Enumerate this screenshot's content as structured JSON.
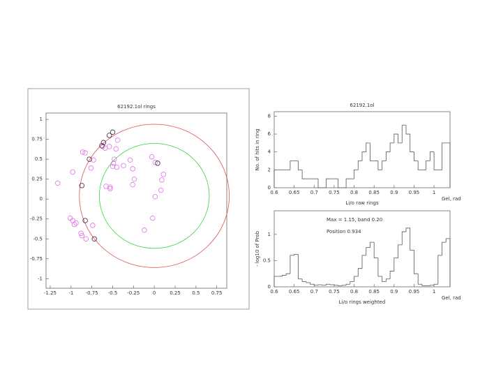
{
  "chart_data": [
    {
      "type": "scatter",
      "title": "62192.1ol rings",
      "xlim": [
        -1.3,
        0.87
      ],
      "ylim": [
        -1.12,
        1.08
      ],
      "xticks": [
        -1.25,
        -1,
        -0.75,
        -0.5,
        -0.25,
        0,
        0.25,
        0.5,
        0.75
      ],
      "yticks": [
        -1,
        -0.75,
        -0.5,
        -0.25,
        0,
        0.25,
        0.5,
        0.75,
        1
      ],
      "rings": [
        {
          "cx": 0,
          "cy": 0.04,
          "r": 0.9,
          "color": "#e05050"
        },
        {
          "cx": 0,
          "cy": 0.04,
          "r": 0.66,
          "color": "#40d040"
        }
      ],
      "series": [
        {
          "color": "#e070e8",
          "x": [
            -1.16,
            -0.98,
            -0.86,
            -0.83,
            -0.73,
            -0.76,
            -0.62,
            -0.59,
            -0.54,
            -0.44,
            -0.46,
            -0.48,
            -0.49,
            -0.5,
            -0.45,
            -0.37,
            -0.29,
            -0.26,
            -0.24,
            -0.26,
            -0.58,
            -0.53,
            -0.53,
            -0.03,
            0.01,
            0.11,
            0.09,
            0.08,
            0.01,
            -0.02,
            -0.12,
            -1.01,
            -0.98,
            -0.96,
            -0.94,
            -0.88,
            -0.87,
            -0.82,
            -0.74
          ],
          "y": [
            0.2,
            0.34,
            0.59,
            0.58,
            0.49,
            0.39,
            0.66,
            0.64,
            0.66,
            0.74,
            0.63,
            0.5,
            0.45,
            0.41,
            0.4,
            0.42,
            0.49,
            0.38,
            0.25,
            0.18,
            0.16,
            0.15,
            0.13,
            0.53,
            0.46,
            0.31,
            0.24,
            0.11,
            0.03,
            -0.24,
            -0.39,
            -0.24,
            -0.27,
            -0.32,
            -0.3,
            -0.43,
            -0.46,
            -0.5,
            -0.33
          ]
        },
        {
          "color": "#402040",
          "x": [
            -0.54,
            -0.5,
            -0.61,
            -0.63,
            -0.78,
            -0.87,
            -0.83,
            -0.72,
            0.04
          ],
          "y": [
            0.8,
            0.84,
            0.71,
            0.67,
            0.5,
            0.17,
            -0.27,
            -0.5,
            0.45
          ]
        }
      ]
    },
    {
      "type": "histogram",
      "title": "62192.1ol",
      "xlabel": "Li/o raw rings",
      "ylabel": "No. of hits in ring",
      "xunit": "Gel, rad",
      "xlim": [
        0.6,
        1.04
      ],
      "ylim": [
        0,
        8.5
      ],
      "xticks": [
        0.6,
        0.65,
        0.7,
        0.75,
        0.8,
        0.85,
        0.9,
        0.95,
        1
      ],
      "yticks": [
        0,
        2,
        4,
        6,
        8
      ],
      "color": "#555555",
      "bins": [
        0.6,
        0.61,
        0.62,
        0.63,
        0.64,
        0.65,
        0.66,
        0.67,
        0.68,
        0.69,
        0.7,
        0.71,
        0.72,
        0.73,
        0.74,
        0.75,
        0.76,
        0.77,
        0.78,
        0.79,
        0.8,
        0.81,
        0.82,
        0.83,
        0.84,
        0.85,
        0.86,
        0.87,
        0.88,
        0.89,
        0.9,
        0.91,
        0.92,
        0.93,
        0.94,
        0.95,
        0.96,
        0.97,
        0.98,
        0.99,
        1.0,
        1.01,
        1.02,
        1.03,
        1.04
      ],
      "values": [
        2,
        2,
        2,
        2,
        3,
        3,
        2,
        1,
        1,
        1,
        1,
        0,
        0,
        1,
        1,
        1,
        0,
        0,
        1,
        1,
        2,
        3,
        4,
        5,
        3,
        3,
        2,
        3,
        4,
        5,
        6,
        5,
        7,
        6,
        4,
        3,
        2,
        2,
        3,
        4,
        2,
        2,
        5,
        5
      ]
    },
    {
      "type": "histogram",
      "xlabel": "Li/o rings weighted",
      "ylabel": "- log10 of Prob",
      "xunit": "Gel, rad",
      "annotations": [
        "Max = 1.15, band 0.20",
        "Position 0.934"
      ],
      "xlim": [
        0.6,
        1.04
      ],
      "ylim": [
        0,
        1.45
      ],
      "xticks": [
        0.6,
        0.65,
        0.7,
        0.75,
        0.8,
        0.85,
        0.9,
        0.95,
        1
      ],
      "yticks": [
        0,
        0.5,
        1
      ],
      "color": "#555555",
      "bins": [
        0.6,
        0.61,
        0.62,
        0.63,
        0.64,
        0.65,
        0.66,
        0.67,
        0.68,
        0.69,
        0.7,
        0.71,
        0.72,
        0.73,
        0.74,
        0.75,
        0.76,
        0.77,
        0.78,
        0.79,
        0.8,
        0.81,
        0.82,
        0.83,
        0.84,
        0.85,
        0.86,
        0.87,
        0.88,
        0.89,
        0.9,
        0.91,
        0.92,
        0.93,
        0.94,
        0.95,
        0.96,
        0.97,
        0.98,
        0.99,
        1.0,
        1.01,
        1.02,
        1.03,
        1.04
      ],
      "values": [
        0.2,
        0.2,
        0.22,
        0.25,
        0.6,
        0.62,
        0.15,
        0.1,
        0.08,
        0.05,
        0.03,
        0.04,
        0.03,
        0.05,
        0.04,
        0.03,
        0.02,
        0.03,
        0.05,
        0.1,
        0.2,
        0.35,
        0.6,
        0.75,
        0.85,
        0.55,
        0.2,
        0.1,
        0.15,
        0.3,
        0.55,
        0.8,
        1.05,
        1.12,
        0.7,
        0.25,
        0.05,
        0.02,
        0.02,
        0.03,
        0.05,
        0.6,
        0.85,
        0.92
      ]
    }
  ]
}
